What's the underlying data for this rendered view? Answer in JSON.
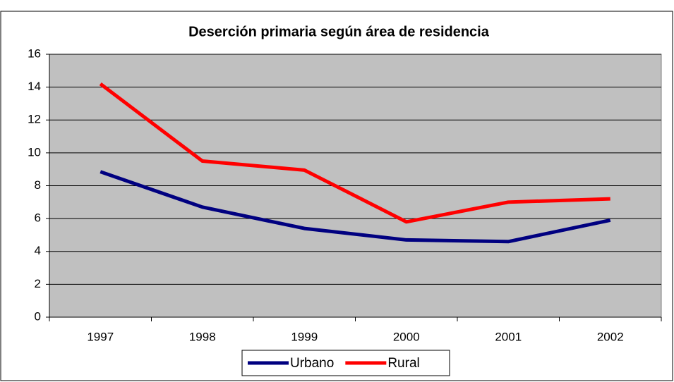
{
  "chart_data": {
    "type": "line",
    "title": "Deserción primaria según área de residencia",
    "categories": [
      "1997",
      "1998",
      "1999",
      "2000",
      "2001",
      "2002"
    ],
    "series": [
      {
        "name": "Urbano",
        "color": "#000080",
        "values": [
          8.85,
          6.7,
          5.4,
          4.7,
          4.6,
          5.9
        ]
      },
      {
        "name": "Rural",
        "color": "#ff0000",
        "values": [
          14.2,
          9.5,
          8.95,
          5.8,
          7.0,
          7.2
        ]
      }
    ],
    "ylim": [
      0,
      16
    ],
    "yticks": [
      0,
      2,
      4,
      6,
      8,
      10,
      12,
      14,
      16
    ],
    "grid": true,
    "legend": "bottom",
    "plot_background": "#c0c0c0"
  }
}
